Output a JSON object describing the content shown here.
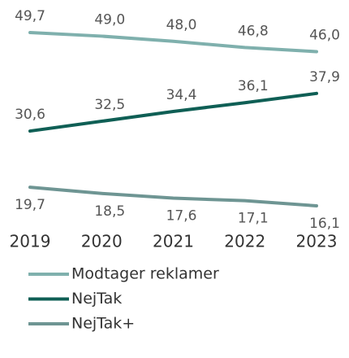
{
  "chart_data": {
    "type": "line",
    "categories": [
      "2019",
      "2020",
      "2021",
      "2022",
      "2023"
    ],
    "series": [
      {
        "name": "Modtager reklamer",
        "color": "#7fb0ad",
        "values": [
          49.7,
          49.0,
          48.0,
          46.8,
          46.0
        ],
        "value_labels": [
          "49,7",
          "49,0",
          "48,0",
          "46,8",
          "46,0"
        ]
      },
      {
        "name": "NejTak",
        "color": "#0f5f55",
        "values": [
          30.6,
          32.5,
          34.4,
          36.1,
          37.9
        ],
        "value_labels": [
          "30,6",
          "32,5",
          "34,4",
          "36,1",
          "37,9"
        ]
      },
      {
        "name": "NejTak+",
        "color": "#6e9593",
        "values": [
          19.7,
          18.5,
          17.6,
          17.1,
          16.1
        ],
        "value_labels": [
          "19,7",
          "18,5",
          "17,6",
          "17,1",
          "16,1"
        ]
      }
    ]
  }
}
